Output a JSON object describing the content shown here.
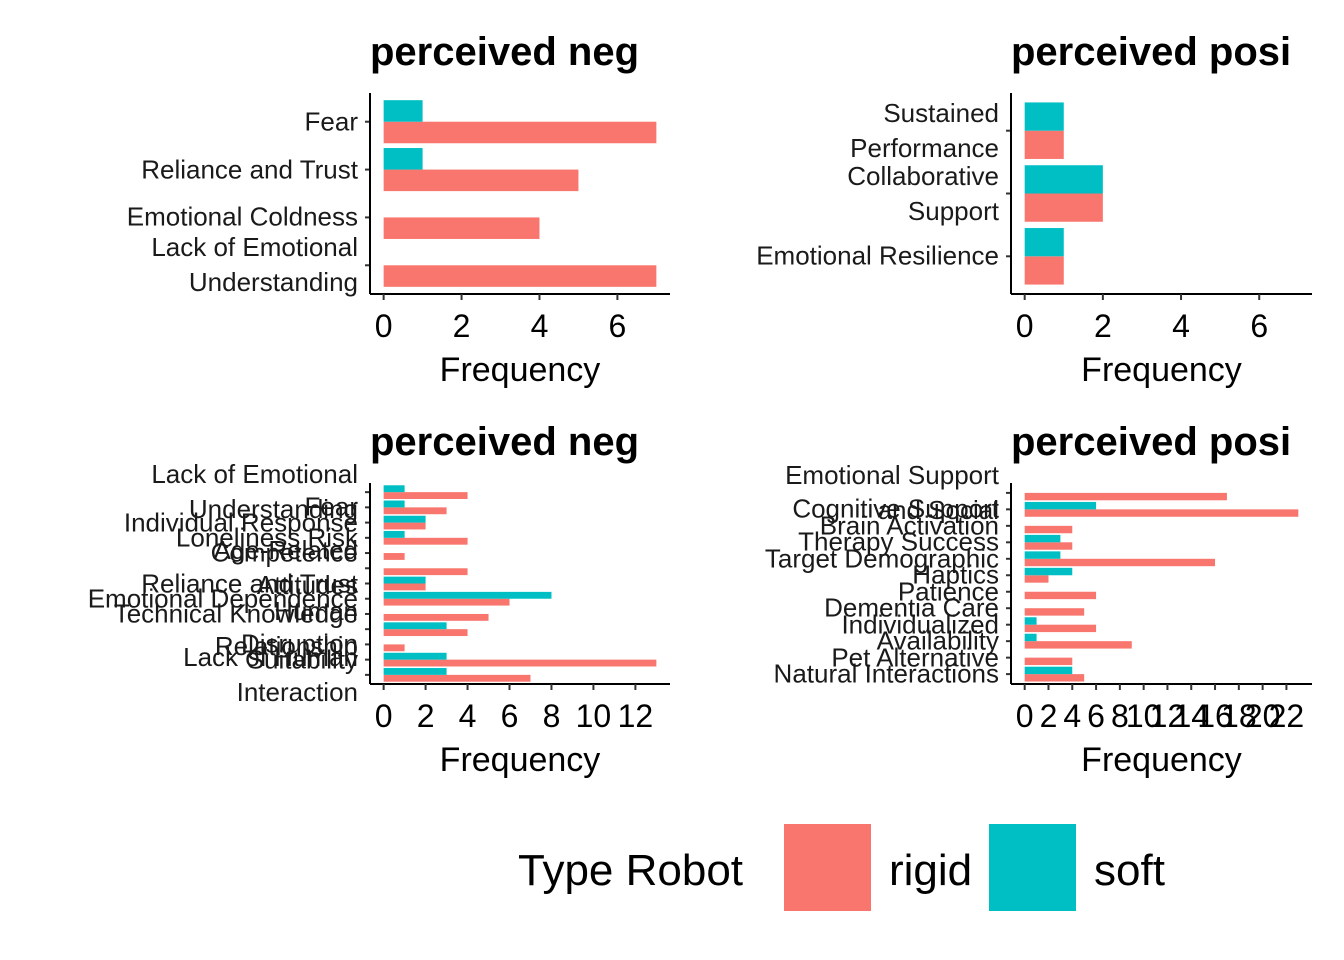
{
  "chart_data": [
    {
      "type": "bar",
      "orientation": "horizontal",
      "title": "perceived neg",
      "x_label": "Frequency",
      "categories": [
        "Fear",
        "Reliance and Trust",
        "Emotional Coldness",
        "Lack of Emotional\nUnderstanding"
      ],
      "series": [
        {
          "name": "rigid",
          "color": "#F8766D",
          "values": [
            7,
            5,
            4,
            7
          ]
        },
        {
          "name": "soft",
          "color": "#00BFC4",
          "values": [
            1,
            1,
            null,
            null
          ]
        }
      ],
      "xlim": [
        -0.35,
        7.35
      ],
      "xticks": [
        0,
        2,
        4,
        6
      ]
    },
    {
      "type": "bar",
      "orientation": "horizontal",
      "title": "perceived posi",
      "x_label": "Frequency",
      "categories": [
        "Sustained\nPerformance",
        "Collaborative\nSupport",
        "Emotional Resilience"
      ],
      "series": [
        {
          "name": "rigid",
          "color": "#F8766D",
          "values": [
            1,
            2,
            1
          ]
        },
        {
          "name": "soft",
          "color": "#00BFC4",
          "values": [
            1,
            2,
            1
          ]
        }
      ],
      "xlim": [
        -0.35,
        7.35
      ],
      "xticks": [
        0,
        2,
        4,
        6
      ]
    },
    {
      "type": "bar",
      "orientation": "horizontal",
      "title": "perceived neg",
      "x_label": "Frequency",
      "categories": [
        "Lack of Emotional\nUnderstanding",
        "Fear",
        "Individual Response",
        "Loneliness Risk",
        "Competence",
        "Age-Related\nAttitudes",
        "Reliance and Trust",
        "Emotional Dependence",
        "Technical Knowledge",
        "Human\nRelationship",
        "Disruption",
        "Suitability",
        "Lack of Human\nInteraction"
      ],
      "series": [
        {
          "name": "rigid",
          "color": "#F8766D",
          "values": [
            4,
            3,
            2,
            4,
            1,
            4,
            2,
            6,
            5,
            4,
            1,
            13,
            7
          ]
        },
        {
          "name": "soft",
          "color": "#00BFC4",
          "values": [
            1,
            1,
            2,
            1,
            null,
            null,
            2,
            8,
            null,
            3,
            null,
            3,
            3
          ]
        }
      ],
      "xlim": [
        -0.65,
        13.65
      ],
      "xticks": [
        0,
        2,
        4,
        6,
        8,
        10,
        12
      ]
    },
    {
      "type": "bar",
      "orientation": "horizontal",
      "title": "perceived posi",
      "x_label": "Frequency",
      "categories": [
        "Emotional Support\nand Social",
        "Cognitive Support",
        "Brain Activation",
        "Therapy Success",
        "Target Demographic",
        "Haptics",
        "Patience",
        "Dementia Care",
        "Individualized",
        "Availability",
        "Pet Alternative",
        "Natural Interactions"
      ],
      "series": [
        {
          "name": "rigid",
          "color": "#F8766D",
          "values": [
            17,
            23,
            4,
            4,
            16,
            2,
            6,
            5,
            6,
            9,
            4,
            5
          ]
        },
        {
          "name": "soft",
          "color": "#00BFC4",
          "values": [
            null,
            6,
            null,
            3,
            3,
            4,
            null,
            null,
            1,
            1,
            null,
            4
          ]
        }
      ],
      "xlim": [
        -1.15,
        24.15
      ],
      "xticks": [
        0,
        2,
        4,
        6,
        8,
        10,
        12,
        14,
        16,
        18,
        20,
        22
      ]
    }
  ],
  "legend": {
    "title": "Type Robot"
  }
}
